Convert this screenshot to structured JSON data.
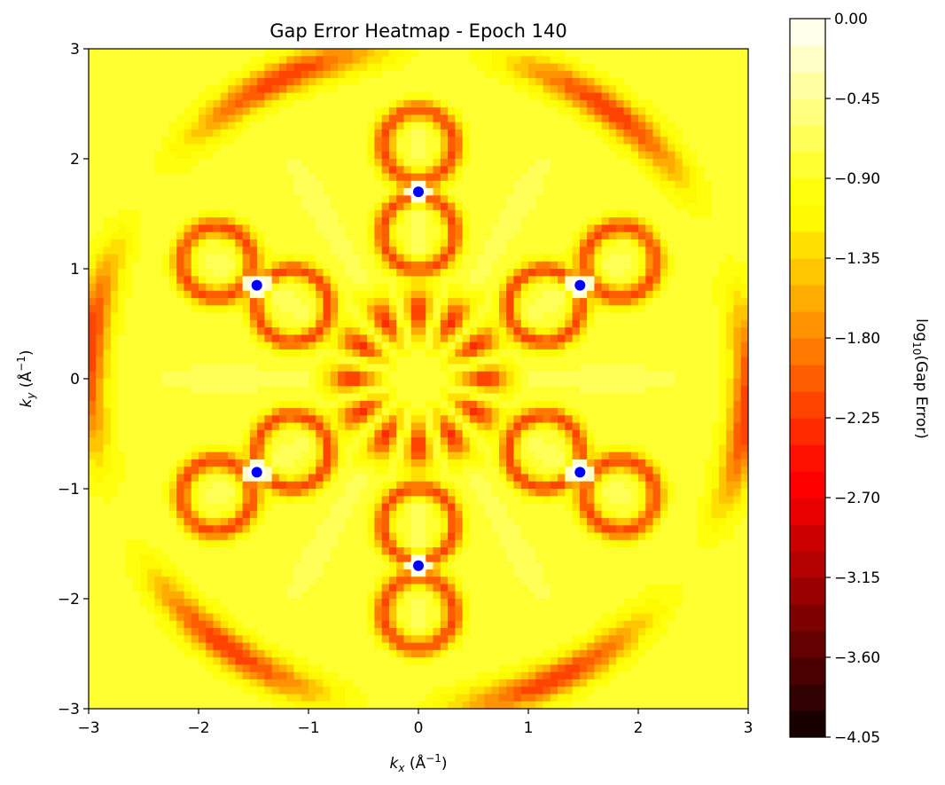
{
  "chart_data": {
    "type": "heatmap",
    "title": "Gap Error Heatmap - Epoch 140",
    "xlabel_main": "k",
    "xlabel_sub": "x",
    "xlabel_unit_open": " (Å",
    "xlabel_unit_exp": "−1",
    "xlabel_unit_close": ")",
    "ylabel_main": "k",
    "ylabel_sub": "y",
    "ylabel_unit_open": " (Å",
    "ylabel_unit_exp": "−1",
    "ylabel_unit_close": ")",
    "xlim": [
      -3,
      3
    ],
    "ylim": [
      -3,
      3
    ],
    "xticks": [
      -3,
      -2,
      -1,
      0,
      1,
      2,
      3
    ],
    "xtick_labels": [
      "−3",
      "−2",
      "−1",
      "0",
      "1",
      "2",
      "3"
    ],
    "yticks": [
      -3,
      -2,
      -1,
      0,
      1,
      2,
      3
    ],
    "ytick_labels": [
      "−3",
      "−2",
      "−1",
      "0",
      "1",
      "2",
      "3"
    ],
    "colorbar": {
      "label_prefix": "log",
      "label_sub": "10",
      "label_suffix": "(Gap Error)",
      "vmin": -4.05,
      "vmax": 0.0,
      "levels": 27,
      "colormap": "hot",
      "ticks": [
        0.0,
        -0.45,
        -0.9,
        -1.35,
        -1.8,
        -2.25,
        -2.7,
        -3.15,
        -3.6,
        -4.05
      ],
      "tick_labels": [
        "0.00",
        "−0.45",
        "−0.90",
        "−1.35",
        "−1.80",
        "−2.25",
        "−2.70",
        "−3.15",
        "−3.60",
        "−4.05"
      ]
    },
    "dirac_points": [
      {
        "x": 0.0,
        "y": 1.7
      },
      {
        "x": 1.47,
        "y": 0.85
      },
      {
        "x": 1.47,
        "y": -0.85
      },
      {
        "x": 0.0,
        "y": -1.7
      },
      {
        "x": -1.47,
        "y": -0.85
      },
      {
        "x": -1.47,
        "y": 0.85
      }
    ],
    "dirac_point_color": "#0000ff",
    "grid": false
  }
}
